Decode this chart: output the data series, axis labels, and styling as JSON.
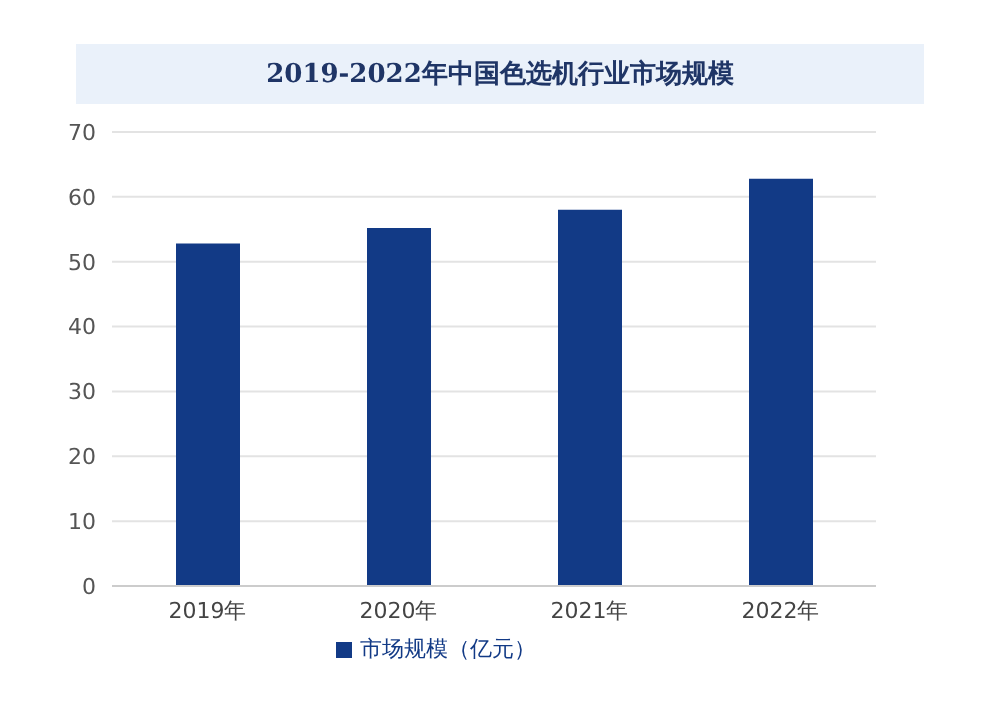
{
  "chart_data": {
    "type": "bar",
    "title": "2019-2022年中国色选机行业市场规模",
    "categories": [
      "2019年",
      "2020年",
      "2021年",
      "2022年"
    ],
    "series": [
      {
        "name": "市场规模（亿元）",
        "color": "#123a86",
        "values": [
          52.8,
          55.2,
          58,
          62.8
        ]
      }
    ],
    "ylim": [
      0,
      70
    ],
    "yticks": [
      0,
      10,
      20,
      30,
      40,
      50,
      60,
      70
    ],
    "grid": "y",
    "legend": "bottom"
  }
}
